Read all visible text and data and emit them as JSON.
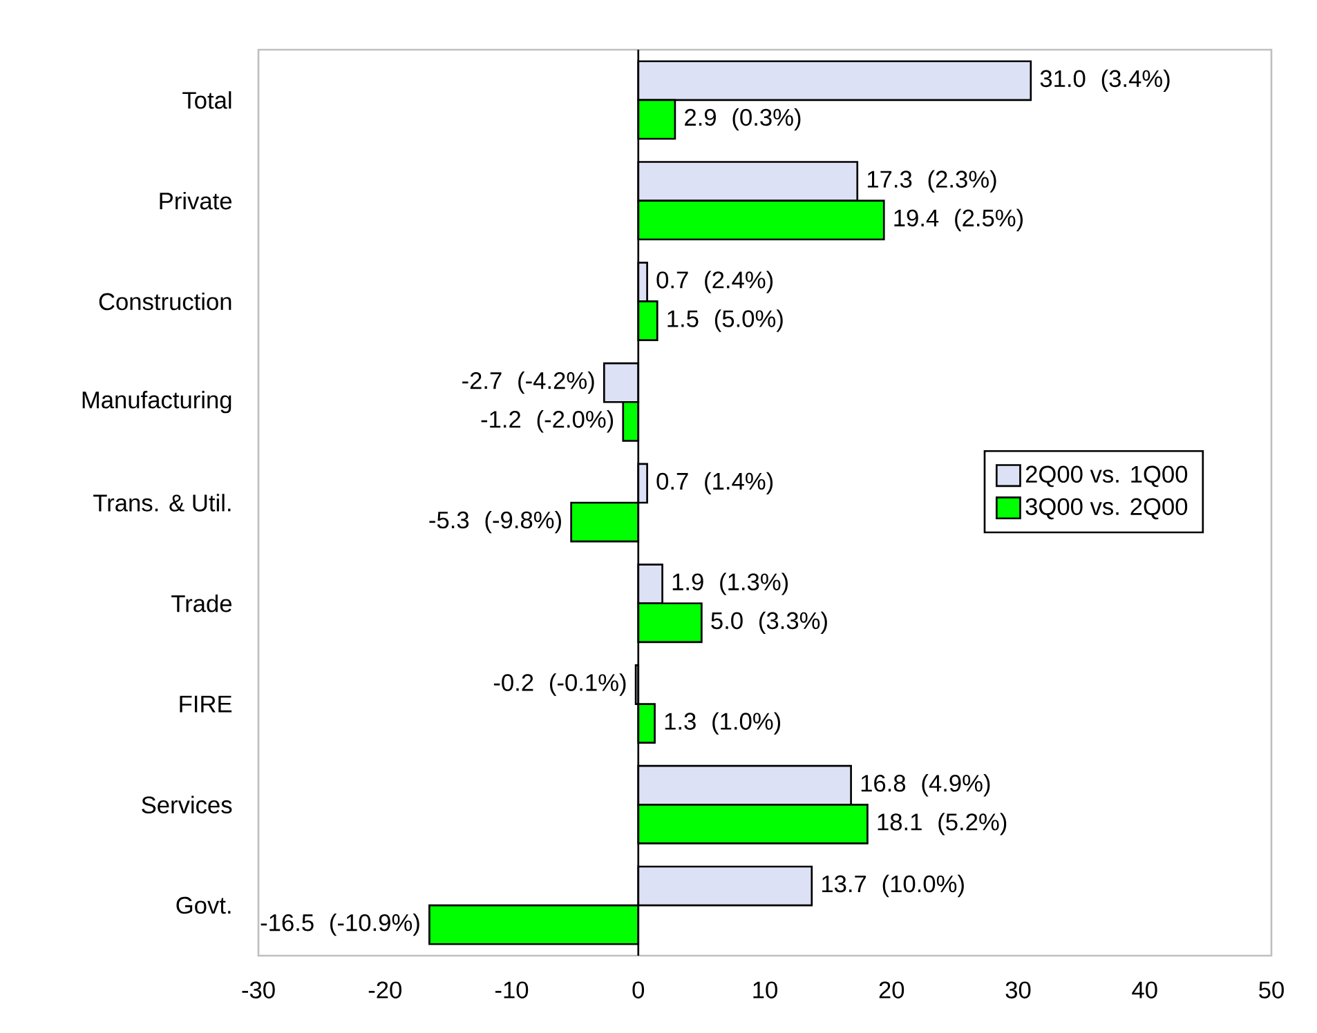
{
  "chart_data": {
    "type": "bar",
    "orientation": "horizontal",
    "categories": [
      "Total",
      "Private",
      "Construction",
      "Manufacturing",
      "Trans. & Util.",
      "Trade",
      "FIRE",
      "Services",
      "Govt."
    ],
    "series": [
      {
        "name": "2Q00 vs. 1Q00",
        "color": "#dde1f5",
        "values": [
          31.0,
          17.3,
          0.7,
          -2.7,
          0.7,
          1.9,
          -0.2,
          16.8,
          13.7
        ],
        "value_labels": [
          "31.0  (3.4%)",
          "17.3  (2.3%)",
          "0.7  (2.4%)",
          "-2.7  (-4.2%)",
          "0.7  (1.4%)",
          "1.9  (1.3%)",
          "-0.2  (-0.1%)",
          "16.8  (4.9%)",
          "13.7  (10.0%)"
        ]
      },
      {
        "name": "3Q00 vs. 2Q00",
        "color": "#00ff00",
        "values": [
          2.9,
          19.4,
          1.5,
          -1.2,
          -5.3,
          5.0,
          1.3,
          18.1,
          -16.5
        ],
        "value_labels": [
          "2.9  (0.3%)",
          "19.4  (2.5%)",
          "1.5  (5.0%)",
          "-1.2  (-2.0%)",
          "-5.3  (-9.8%)",
          "5.0  (3.3%)",
          "1.3  (1.0%)",
          "18.1  (5.2%)",
          "-16.5  (-10.9%)"
        ]
      }
    ],
    "xlim": [
      -30,
      50
    ],
    "xticks": [
      -30,
      -20,
      -10,
      0,
      10,
      20,
      30,
      40,
      50
    ],
    "legend": "right"
  }
}
